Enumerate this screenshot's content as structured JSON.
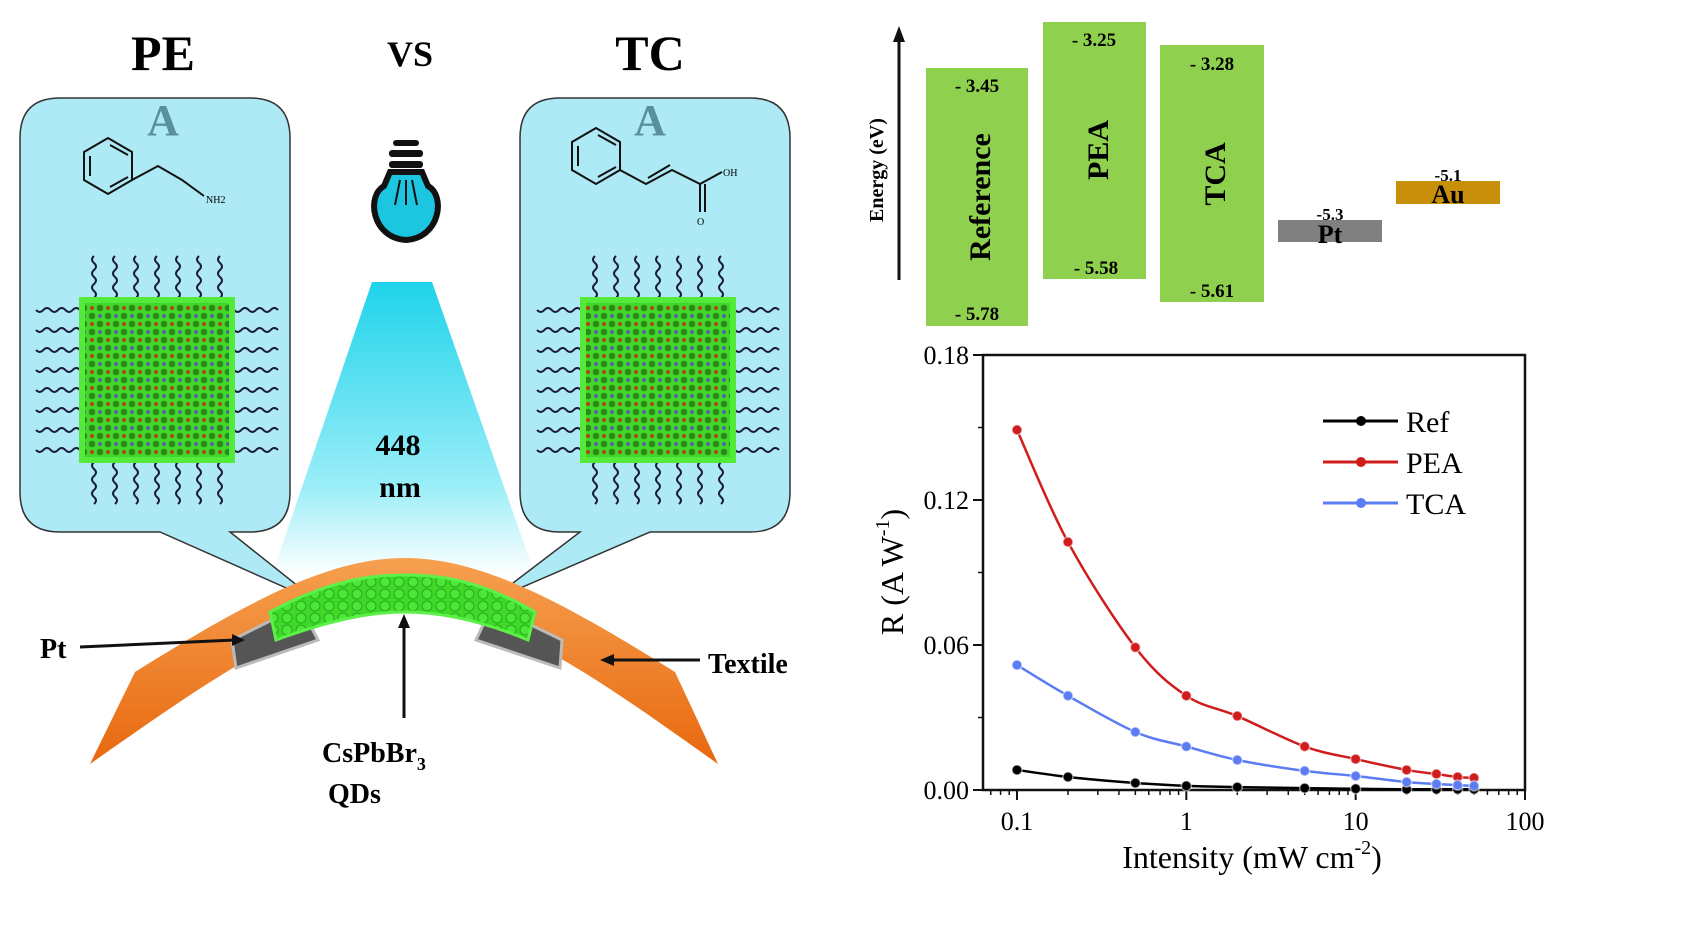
{
  "schematic": {
    "left_title": "PE",
    "vs_label": "VS",
    "right_title": "TC",
    "left_bubble_letter": "A",
    "right_bubble_letter": "A",
    "left_molecule_group": "NH2",
    "right_molecule_group_oh": "OH",
    "right_molecule_group_o": "O",
    "wavelength_value": "448",
    "wavelength_unit": "nm",
    "label_pt": "Pt",
    "label_textile": "Textile",
    "label_qds_main": "CsPbBr",
    "label_qds_sub": "3",
    "label_qds_line2": "QDs",
    "colors": {
      "bubble": "#aee9f6",
      "qd": "#35d61e",
      "textile": "#f07a1a",
      "beam": "#1fd3ea"
    }
  },
  "energy_diagram": {
    "ylabel": "Energy (eV)",
    "bars": [
      {
        "name": "Reference",
        "top": "- 3.45",
        "bottom": "- 5.78"
      },
      {
        "name": "PEA",
        "top": "- 3.25",
        "bottom": "- 5.58"
      },
      {
        "name": "TCA",
        "top": "- 3.28",
        "bottom": "- 5.61"
      }
    ],
    "electrodes": [
      {
        "name": "Pt",
        "level": "-5.3",
        "color": "#808080"
      },
      {
        "name": "Au",
        "level": "-5.1",
        "color": "#c8900a"
      }
    ],
    "bar_color": "#8fd14f"
  },
  "chart_data": {
    "type": "line",
    "title": "",
    "xlabel": "Intensity (mW cm",
    "xlabel_sup": "-2",
    "xlabel_end": ")",
    "ylabel": "R (A W",
    "ylabel_sup": "-1",
    "ylabel_end": ")",
    "x_scale": "log",
    "xlim": [
      0.063,
      100
    ],
    "ylim": [
      0,
      0.18
    ],
    "x_ticks": [
      "0.1",
      "1",
      "10",
      "100"
    ],
    "y_ticks": [
      "0.00",
      "0.06",
      "0.12",
      "0.18"
    ],
    "grid": false,
    "legend_position": "top-right",
    "x": [
      0.1,
      0.2,
      0.5,
      1,
      2,
      5,
      10,
      20,
      30,
      40,
      50
    ],
    "series": [
      {
        "name": "Ref",
        "color": "#000000",
        "values": [
          0.0083,
          0.0054,
          0.0029,
          0.0017,
          0.0012,
          0.0008,
          0.0005,
          0.0003,
          0.0003,
          0.0003,
          0.0003
        ]
      },
      {
        "name": "PEA",
        "color": "#d01c1c",
        "values": [
          0.149,
          0.1026,
          0.059,
          0.039,
          0.0306,
          0.018,
          0.0128,
          0.0083,
          0.0066,
          0.0054,
          0.005
        ]
      },
      {
        "name": "TCA",
        "color": "#5b7cf2",
        "values": [
          0.0517,
          0.039,
          0.024,
          0.018,
          0.0124,
          0.0079,
          0.0058,
          0.0033,
          0.0025,
          0.002,
          0.0017
        ]
      }
    ]
  }
}
